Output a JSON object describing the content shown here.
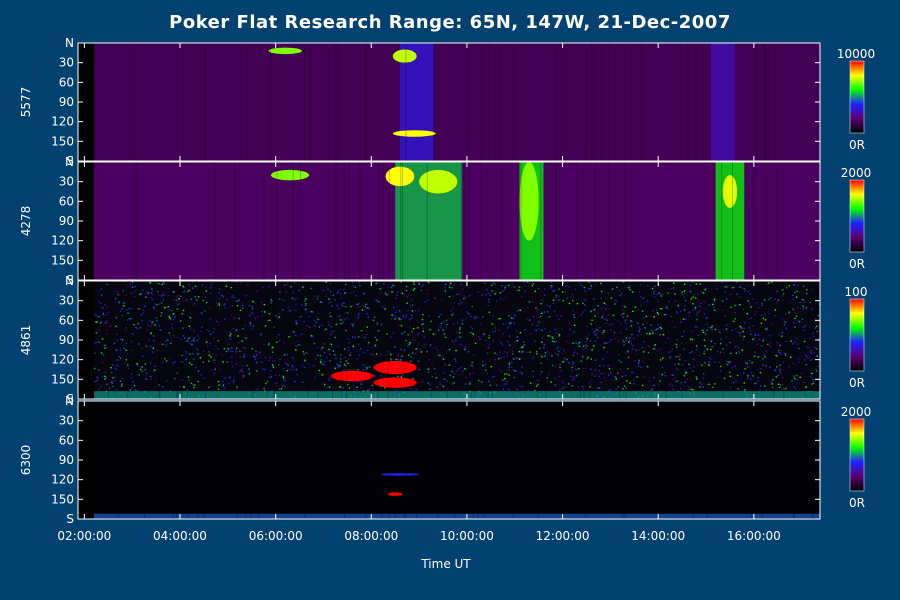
{
  "chart_data": {
    "type": "heatmap",
    "title": "Poker Flat Research Range: 65N, 147W, 21-Dec-2007",
    "xlabel": "Time UT",
    "x_ticks": [
      "02:00:00",
      "04:00:00",
      "06:00:00",
      "08:00:00",
      "10:00:00",
      "12:00:00",
      "14:00:00",
      "16:00:00"
    ],
    "x_range": [
      "01:52:00",
      "17:23:00"
    ],
    "y_ticks": [
      "N",
      "30",
      "60",
      "90",
      "120",
      "150",
      "S"
    ],
    "y_range": [
      0,
      180
    ],
    "colorscale": [
      "#000000",
      "#5a0070",
      "#2020ff",
      "#00ff00",
      "#ffff00",
      "#ff0000"
    ],
    "panels": [
      {
        "wavelength": "5577",
        "colorbar": {
          "max_label": "10000",
          "min_label": "0R"
        },
        "background": "#1a0626",
        "features": [
          {
            "kind": "band",
            "t0": 2.2,
            "t1": 17.4,
            "level": 0.18
          },
          {
            "kind": "band",
            "t0": 8.6,
            "t1": 9.3,
            "level": 0.35
          },
          {
            "kind": "band",
            "t0": 15.1,
            "t1": 15.6,
            "level": 0.3
          },
          {
            "kind": "blob",
            "t": 6.2,
            "lat": 12,
            "dt": 0.35,
            "dlat": 5,
            "level": 0.7
          },
          {
            "kind": "blob",
            "t": 8.7,
            "lat": 20,
            "dt": 0.25,
            "dlat": 10,
            "level": 0.75
          },
          {
            "kind": "blob",
            "t": 8.9,
            "lat": 138,
            "dt": 0.45,
            "dlat": 5,
            "level": 0.8
          }
        ]
      },
      {
        "wavelength": "4278",
        "colorbar": {
          "max_label": "2000",
          "min_label": "0R"
        },
        "background": "#1c0730",
        "features": [
          {
            "kind": "band",
            "t0": 2.2,
            "t1": 17.4,
            "level": 0.2
          },
          {
            "kind": "band",
            "t0": 8.5,
            "t1": 9.9,
            "level": 0.55
          },
          {
            "kind": "band",
            "t0": 11.1,
            "t1": 11.6,
            "level": 0.6
          },
          {
            "kind": "band",
            "t0": 15.2,
            "t1": 15.8,
            "level": 0.6
          },
          {
            "kind": "blob",
            "t": 9.4,
            "lat": 30,
            "dt": 0.4,
            "dlat": 18,
            "level": 0.75
          },
          {
            "kind": "blob",
            "t": 6.3,
            "lat": 20,
            "dt": 0.4,
            "dlat": 8,
            "level": 0.7
          },
          {
            "kind": "blob",
            "t": 8.6,
            "lat": 22,
            "dt": 0.3,
            "dlat": 15,
            "level": 0.8
          },
          {
            "kind": "blob",
            "t": 11.3,
            "lat": 60,
            "dt": 0.2,
            "dlat": 60,
            "level": 0.7
          },
          {
            "kind": "blob",
            "t": 15.5,
            "lat": 45,
            "dt": 0.15,
            "dlat": 25,
            "level": 0.78
          }
        ]
      },
      {
        "wavelength": "4861",
        "colorbar": {
          "max_label": "100",
          "min_label": "0R"
        },
        "background": "#05060f",
        "features": [
          {
            "kind": "noise",
            "t0": 2.2,
            "t1": 17.4,
            "level": 0.42
          },
          {
            "kind": "blob",
            "t": 8.5,
            "lat": 132,
            "dt": 0.45,
            "dlat": 10,
            "level": 1.0
          },
          {
            "kind": "blob",
            "t": 8.5,
            "lat": 155,
            "dt": 0.45,
            "dlat": 8,
            "level": 1.0
          },
          {
            "kind": "blob",
            "t": 7.6,
            "lat": 145,
            "dt": 0.45,
            "dlat": 8,
            "level": 1.0
          },
          {
            "kind": "band",
            "t0": 2.2,
            "t1": 17.4,
            "level": 0.5,
            "lat0": 168,
            "lat1": 180
          }
        ]
      },
      {
        "wavelength": "6300",
        "colorbar": {
          "max_label": "2000",
          "min_label": "0R"
        },
        "background": "#020205",
        "features": [
          {
            "kind": "band",
            "t0": 2.2,
            "t1": 17.4,
            "level": 0.45,
            "lat0": 172,
            "lat1": 180
          },
          {
            "kind": "blob",
            "t": 8.6,
            "lat": 112,
            "dt": 0.4,
            "dlat": 2,
            "level": 0.4
          },
          {
            "kind": "blob",
            "t": 8.5,
            "lat": 142,
            "dt": 0.15,
            "dlat": 3,
            "level": 1.0
          }
        ]
      }
    ]
  }
}
